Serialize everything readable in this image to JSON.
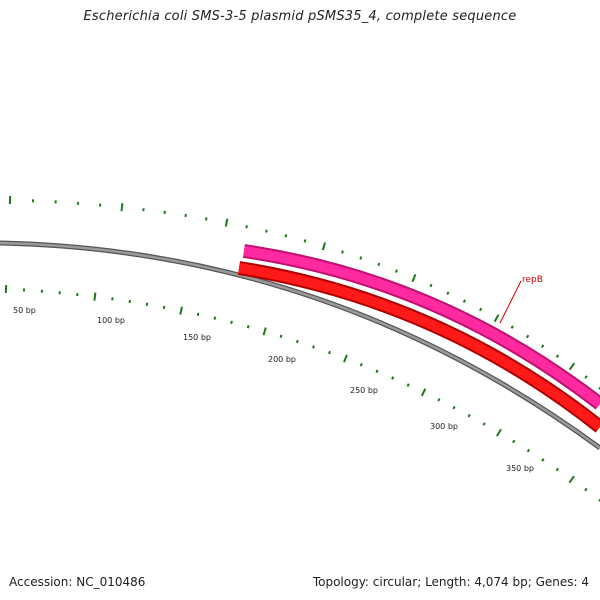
{
  "title": "Escherichia coli SMS-3-5 plasmid pSMS35_4, complete sequence",
  "accession": "Accession: NC_010486",
  "summary": "Topology: circular; Length: 4,074 bp; Genes: 4",
  "colors": {
    "backbone": "#888888",
    "forward_gene": "#ff1493",
    "reverse_gene": "#ff0000",
    "ticks": "#1a7a1a",
    "label_line": "#cc0000"
  },
  "genes": [
    {
      "name": "repB",
      "strand": "forward",
      "color": "#ff1493"
    },
    {
      "name": "",
      "strand": "reverse",
      "color": "#ff0000"
    }
  ],
  "tick_labels": [
    "50 bp",
    "100 bp",
    "150 bp",
    "200 bp",
    "250 bp",
    "300 bp",
    "350 bp"
  ]
}
